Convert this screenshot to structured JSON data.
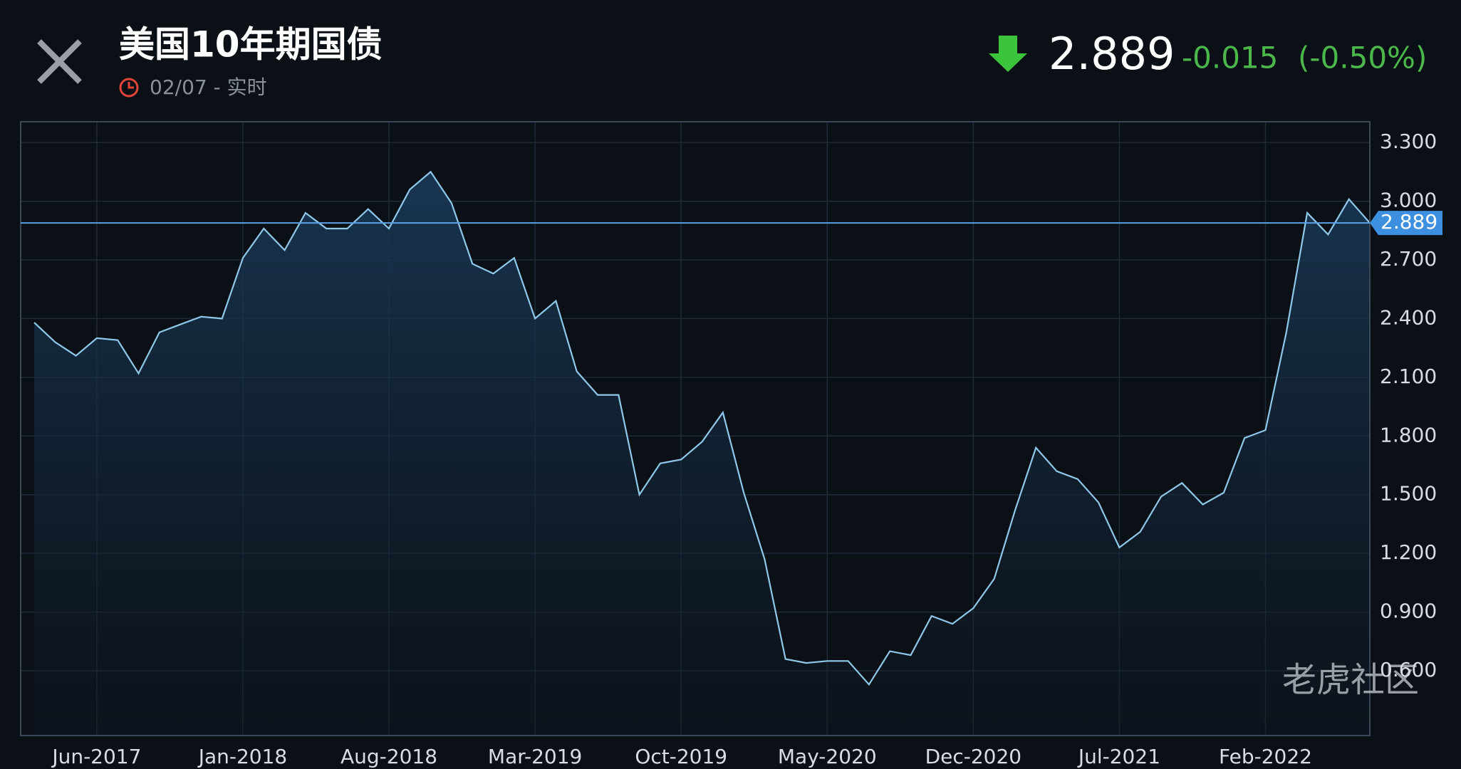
{
  "header": {
    "title": "美国10年期国债",
    "subtitle": "02/07 - 实时",
    "price": "2.889",
    "change": "-0.015",
    "change_percent": "(-0.50%)",
    "watermark": "老虎社区"
  },
  "chart_data": {
    "type": "area",
    "categories": [
      null,
      null,
      null,
      "Jun-2017",
      null,
      null,
      null,
      null,
      null,
      null,
      "Jan-2018",
      null,
      null,
      null,
      null,
      null,
      null,
      "Aug-2018",
      null,
      null,
      null,
      null,
      null,
      null,
      "Mar-2019",
      null,
      null,
      null,
      null,
      null,
      null,
      "Oct-2019",
      null,
      null,
      null,
      null,
      null,
      null,
      "May-2020",
      null,
      null,
      null,
      null,
      null,
      null,
      "Dec-2020",
      null,
      null,
      null,
      null,
      null,
      null,
      "Jul-2021",
      null,
      null,
      null,
      null,
      null,
      null,
      "Feb-2022",
      null,
      null,
      null,
      null,
      null
    ],
    "values": [
      2.38,
      2.28,
      2.21,
      2.3,
      2.29,
      2.12,
      2.33,
      2.37,
      2.41,
      2.4,
      2.71,
      2.86,
      2.75,
      2.94,
      2.86,
      2.86,
      2.96,
      2.86,
      3.06,
      3.15,
      2.99,
      2.68,
      2.63,
      2.71,
      2.4,
      2.49,
      2.13,
      2.01,
      2.01,
      1.5,
      1.66,
      1.68,
      1.77,
      1.92,
      1.51,
      1.17,
      0.66,
      0.64,
      0.65,
      0.65,
      0.53,
      0.7,
      0.68,
      0.88,
      0.84,
      0.92,
      1.07,
      1.42,
      1.74,
      1.62,
      1.58,
      1.46,
      1.23,
      1.31,
      1.49,
      1.56,
      1.45,
      1.51,
      1.79,
      1.83,
      2.33,
      2.94,
      2.83,
      3.01,
      2.889
    ],
    "color": "#8fc8e8",
    "current_value": {
      "value": 2.889,
      "label": "2.889"
    },
    "ylim": [
      0.269,
      3.406
    ],
    "yticks": [
      {
        "value": 0.6,
        "label": "0.600"
      },
      {
        "value": 0.9,
        "label": "0.900"
      },
      {
        "value": 1.2,
        "label": "1.200"
      },
      {
        "value": 1.5,
        "label": "1.500"
      },
      {
        "value": 1.8,
        "label": "1.800"
      },
      {
        "value": 2.1,
        "label": "2.100"
      },
      {
        "value": 2.4,
        "label": "2.400"
      },
      {
        "value": 2.7,
        "label": "2.700"
      },
      {
        "value": 3.0,
        "label": "3.000"
      },
      {
        "value": 3.3,
        "label": "3.300"
      }
    ],
    "grid": true
  }
}
